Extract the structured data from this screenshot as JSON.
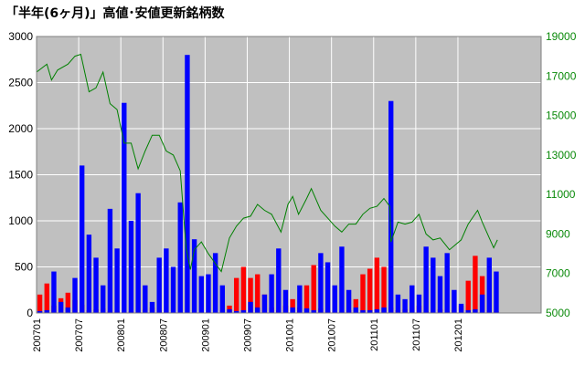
{
  "chart_data": {
    "type": "bar",
    "title": "「半年(6ヶ月)」高値･安値更新銘柄数",
    "xlabel": "",
    "ylabel": "",
    "background_color": "#c0c0c0",
    "grid": true,
    "x_range": [
      "2007-01",
      "2012-12"
    ],
    "x_tick_labels": [
      "200701",
      "200707",
      "200801",
      "200807",
      "200901",
      "200907",
      "201001",
      "201007",
      "201101",
      "201107",
      "201201"
    ],
    "y_left": {
      "range": [
        0,
        3000
      ],
      "ticks": [
        0,
        500,
        1000,
        1500,
        2000,
        2500,
        3000
      ]
    },
    "y_right": {
      "range": [
        5000,
        19000
      ],
      "ticks": [
        5000,
        7000,
        9000,
        11000,
        13000,
        15000,
        17000,
        19000
      ],
      "color": "#0a8a0a"
    },
    "series": [
      {
        "type": "bar",
        "axis": "left",
        "color": "#ff0000",
        "points": [
          [
            "2007-01-15",
            200
          ],
          [
            "2007-02-15",
            320
          ],
          [
            "2007-03-15",
            80
          ],
          [
            "2007-04-15",
            160
          ],
          [
            "2007-05-15",
            220
          ],
          [
            "2007-06-15",
            140
          ],
          [
            "2007-07-15",
            90
          ],
          [
            "2007-08-15",
            30
          ],
          [
            "2007-09-15",
            40
          ],
          [
            "2007-10-15",
            50
          ],
          [
            "2007-11-15",
            20
          ],
          [
            "2007-12-15",
            20
          ],
          [
            "2008-01-15",
            15
          ],
          [
            "2008-02-15",
            20
          ],
          [
            "2008-03-15",
            10
          ],
          [
            "2008-04-15",
            40
          ],
          [
            "2008-05-15",
            60
          ],
          [
            "2008-06-15",
            30
          ],
          [
            "2008-07-15",
            15
          ],
          [
            "2008-08-15",
            10
          ],
          [
            "2008-09-15",
            10
          ],
          [
            "2008-10-15",
            5
          ],
          [
            "2008-11-15",
            5
          ],
          [
            "2008-12-15",
            10
          ],
          [
            "2009-01-15",
            10
          ],
          [
            "2009-02-15",
            10
          ],
          [
            "2009-03-15",
            30
          ],
          [
            "2009-04-15",
            80
          ],
          [
            "2009-05-15",
            380
          ],
          [
            "2009-06-15",
            500
          ],
          [
            "2009-07-15",
            380
          ],
          [
            "2009-08-15",
            420
          ],
          [
            "2009-09-15",
            200
          ],
          [
            "2009-10-15",
            60
          ],
          [
            "2009-11-15",
            30
          ],
          [
            "2009-12-15",
            80
          ],
          [
            "2010-01-15",
            150
          ],
          [
            "2010-02-15",
            60
          ],
          [
            "2010-03-15",
            300
          ],
          [
            "2010-04-15",
            520
          ],
          [
            "2010-05-15",
            50
          ],
          [
            "2010-06-15",
            20
          ],
          [
            "2010-07-15",
            20
          ],
          [
            "2010-08-15",
            15
          ],
          [
            "2010-09-15",
            30
          ],
          [
            "2010-10-15",
            150
          ],
          [
            "2010-11-15",
            420
          ],
          [
            "2010-12-15",
            480
          ],
          [
            "2011-01-15",
            600
          ],
          [
            "2011-02-15",
            500
          ],
          [
            "2011-03-15",
            60
          ],
          [
            "2011-04-15",
            30
          ],
          [
            "2011-05-15",
            40
          ],
          [
            "2011-06-15",
            60
          ],
          [
            "2011-07-15",
            80
          ],
          [
            "2011-08-15",
            20
          ],
          [
            "2011-09-15",
            20
          ],
          [
            "2011-10-15",
            40
          ],
          [
            "2011-11-15",
            20
          ],
          [
            "2011-12-15",
            30
          ],
          [
            "2012-01-15",
            80
          ],
          [
            "2012-02-15",
            350
          ],
          [
            "2012-03-15",
            620
          ],
          [
            "2012-04-15",
            400
          ],
          [
            "2012-05-15",
            30
          ],
          [
            "2012-06-15",
            20
          ]
        ]
      },
      {
        "type": "bar",
        "axis": "left",
        "color": "#0000ff",
        "points": [
          [
            "2007-01-15",
            20
          ],
          [
            "2007-02-15",
            30
          ],
          [
            "2007-03-15",
            450
          ],
          [
            "2007-04-15",
            120
          ],
          [
            "2007-05-15",
            60
          ],
          [
            "2007-06-15",
            380
          ],
          [
            "2007-07-15",
            1600
          ],
          [
            "2007-08-15",
            850
          ],
          [
            "2007-09-15",
            600
          ],
          [
            "2007-10-15",
            300
          ],
          [
            "2007-11-15",
            1130
          ],
          [
            "2007-12-15",
            700
          ],
          [
            "2008-01-15",
            2280
          ],
          [
            "2008-02-15",
            1000
          ],
          [
            "2008-03-15",
            1300
          ],
          [
            "2008-04-15",
            300
          ],
          [
            "2008-05-15",
            120
          ],
          [
            "2008-06-15",
            600
          ],
          [
            "2008-07-15",
            700
          ],
          [
            "2008-08-15",
            500
          ],
          [
            "2008-09-15",
            1200
          ],
          [
            "2008-10-15",
            2800
          ],
          [
            "2008-11-15",
            800
          ],
          [
            "2008-12-15",
            400
          ],
          [
            "2009-01-15",
            420
          ],
          [
            "2009-02-15",
            650
          ],
          [
            "2009-03-15",
            300
          ],
          [
            "2009-04-15",
            40
          ],
          [
            "2009-05-15",
            20
          ],
          [
            "2009-06-15",
            30
          ],
          [
            "2009-07-15",
            120
          ],
          [
            "2009-08-15",
            60
          ],
          [
            "2009-09-15",
            200
          ],
          [
            "2009-10-15",
            420
          ],
          [
            "2009-11-15",
            700
          ],
          [
            "2009-12-15",
            250
          ],
          [
            "2010-01-15",
            60
          ],
          [
            "2010-02-15",
            300
          ],
          [
            "2010-03-15",
            50
          ],
          [
            "2010-04-15",
            30
          ],
          [
            "2010-05-15",
            650
          ],
          [
            "2010-06-15",
            550
          ],
          [
            "2010-07-15",
            300
          ],
          [
            "2010-08-15",
            720
          ],
          [
            "2010-09-15",
            250
          ],
          [
            "2010-10-15",
            60
          ],
          [
            "2010-11-15",
            30
          ],
          [
            "2010-12-15",
            30
          ],
          [
            "2011-01-15",
            40
          ],
          [
            "2011-02-15",
            60
          ],
          [
            "2011-03-15",
            2300
          ],
          [
            "2011-04-15",
            200
          ],
          [
            "2011-05-15",
            150
          ],
          [
            "2011-06-15",
            300
          ],
          [
            "2011-07-15",
            200
          ],
          [
            "2011-08-15",
            720
          ],
          [
            "2011-09-15",
            600
          ],
          [
            "2011-10-15",
            400
          ],
          [
            "2011-11-15",
            650
          ],
          [
            "2011-12-15",
            250
          ],
          [
            "2012-01-15",
            100
          ],
          [
            "2012-02-15",
            30
          ],
          [
            "2012-03-15",
            40
          ],
          [
            "2012-04-15",
            200
          ],
          [
            "2012-05-15",
            600
          ],
          [
            "2012-06-15",
            450
          ]
        ]
      },
      {
        "type": "line",
        "axis": "right",
        "color": "#008000",
        "points": [
          [
            "2007-01-01",
            17200
          ],
          [
            "2007-02-15",
            17600
          ],
          [
            "2007-03-05",
            16800
          ],
          [
            "2007-04-01",
            17300
          ],
          [
            "2007-05-15",
            17600
          ],
          [
            "2007-06-15",
            18000
          ],
          [
            "2007-07-10",
            18100
          ],
          [
            "2007-08-15",
            16200
          ],
          [
            "2007-09-15",
            16400
          ],
          [
            "2007-10-15",
            17200
          ],
          [
            "2007-11-15",
            15600
          ],
          [
            "2007-12-15",
            15300
          ],
          [
            "2008-01-15",
            13600
          ],
          [
            "2008-02-15",
            13600
          ],
          [
            "2008-03-15",
            12300
          ],
          [
            "2008-04-15",
            13200
          ],
          [
            "2008-05-15",
            14000
          ],
          [
            "2008-06-15",
            14000
          ],
          [
            "2008-07-15",
            13200
          ],
          [
            "2008-08-15",
            13000
          ],
          [
            "2008-09-15",
            12200
          ],
          [
            "2008-10-10",
            8300
          ],
          [
            "2008-10-28",
            7200
          ],
          [
            "2008-11-15",
            8200
          ],
          [
            "2008-12-15",
            8600
          ],
          [
            "2009-01-15",
            8000
          ],
          [
            "2009-02-15",
            7500
          ],
          [
            "2009-03-10",
            7100
          ],
          [
            "2009-04-15",
            8800
          ],
          [
            "2009-05-15",
            9400
          ],
          [
            "2009-06-15",
            9800
          ],
          [
            "2009-07-15",
            9900
          ],
          [
            "2009-08-15",
            10500
          ],
          [
            "2009-09-15",
            10200
          ],
          [
            "2009-10-15",
            10000
          ],
          [
            "2009-11-25",
            9100
          ],
          [
            "2009-12-25",
            10500
          ],
          [
            "2010-01-15",
            10900
          ],
          [
            "2010-02-10",
            10000
          ],
          [
            "2010-03-15",
            10800
          ],
          [
            "2010-04-05",
            11300
          ],
          [
            "2010-05-15",
            10200
          ],
          [
            "2010-06-15",
            9800
          ],
          [
            "2010-07-15",
            9400
          ],
          [
            "2010-08-15",
            9100
          ],
          [
            "2010-09-15",
            9500
          ],
          [
            "2010-10-15",
            9500
          ],
          [
            "2010-11-15",
            10000
          ],
          [
            "2010-12-15",
            10300
          ],
          [
            "2011-01-15",
            10400
          ],
          [
            "2011-02-15",
            10800
          ],
          [
            "2011-03-10",
            10400
          ],
          [
            "2011-03-15",
            8600
          ],
          [
            "2011-04-15",
            9600
          ],
          [
            "2011-05-15",
            9500
          ],
          [
            "2011-06-15",
            9600
          ],
          [
            "2011-07-15",
            10000
          ],
          [
            "2011-08-15",
            9000
          ],
          [
            "2011-09-15",
            8700
          ],
          [
            "2011-10-15",
            8800
          ],
          [
            "2011-11-25",
            8200
          ],
          [
            "2011-12-15",
            8400
          ],
          [
            "2012-01-15",
            8700
          ],
          [
            "2012-02-15",
            9500
          ],
          [
            "2012-03-25",
            10200
          ],
          [
            "2012-04-15",
            9600
          ],
          [
            "2012-05-15",
            8800
          ],
          [
            "2012-06-04",
            8300
          ],
          [
            "2012-06-20",
            8700
          ]
        ]
      }
    ]
  }
}
